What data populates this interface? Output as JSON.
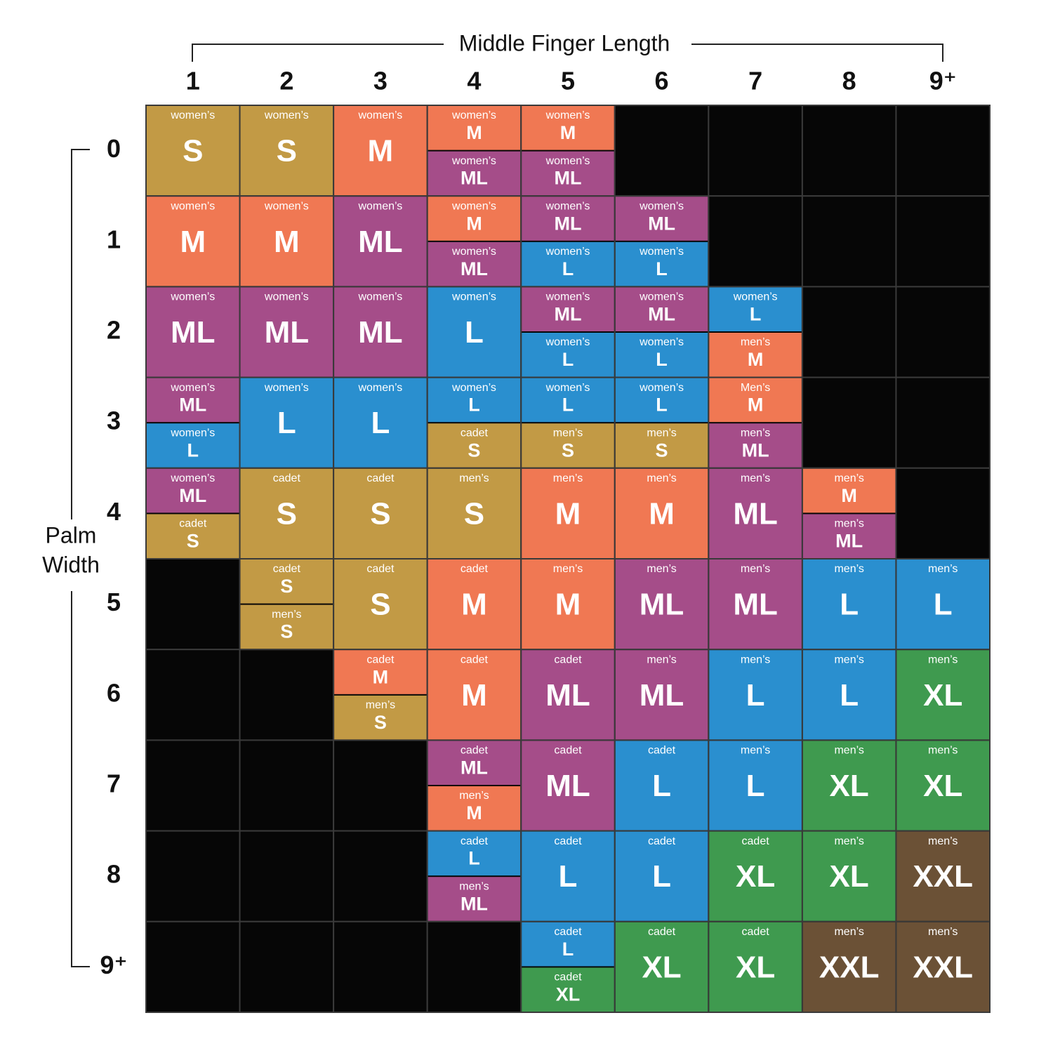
{
  "header": {
    "title": "Middle Finger Length",
    "side_title": [
      "Palm",
      "Width"
    ]
  },
  "palette": {
    "S": "#c29a45",
    "M": "#f07853",
    "ML": "#a54d89",
    "L": "#2a8fcf",
    "XL": "#3f9a4f",
    "XXL": "#6b5136",
    "empty": "#060606"
  },
  "table": {
    "columns": [
      "1",
      "2",
      "3",
      "4",
      "5",
      "6",
      "7",
      "8",
      "9⁺"
    ],
    "rows": [
      {
        "label": "0",
        "cells": [
          [
            [
              "women’s",
              "S"
            ]
          ],
          [
            [
              "women’s",
              "S"
            ]
          ],
          [
            [
              "women’s",
              "M"
            ]
          ],
          [
            [
              "women’s",
              "M"
            ],
            [
              "women’s",
              "ML"
            ]
          ],
          [
            [
              "women’s",
              "M"
            ],
            [
              "women’s",
              "ML"
            ]
          ],
          [],
          [],
          [],
          []
        ]
      },
      {
        "label": "1",
        "cells": [
          [
            [
              "women’s",
              "M"
            ]
          ],
          [
            [
              "women’s",
              "M"
            ]
          ],
          [
            [
              "women’s",
              "ML"
            ]
          ],
          [
            [
              "women’s",
              "M"
            ],
            [
              "women’s",
              "ML"
            ]
          ],
          [
            [
              "women’s",
              "ML"
            ],
            [
              "women’s",
              "L"
            ]
          ],
          [
            [
              "women’s",
              "ML"
            ],
            [
              "women’s",
              "L"
            ]
          ],
          [],
          [],
          []
        ]
      },
      {
        "label": "2",
        "cells": [
          [
            [
              "women’s",
              "ML"
            ]
          ],
          [
            [
              "women’s",
              "ML"
            ]
          ],
          [
            [
              "women’s",
              "ML"
            ]
          ],
          [
            [
              "women’s",
              "L"
            ]
          ],
          [
            [
              "women’s",
              "ML"
            ],
            [
              "women’s",
              "L"
            ]
          ],
          [
            [
              "women’s",
              "ML"
            ],
            [
              "women’s",
              "L"
            ]
          ],
          [
            [
              "women’s",
              "L"
            ],
            [
              "men’s",
              "M"
            ]
          ],
          [],
          []
        ]
      },
      {
        "label": "3",
        "cells": [
          [
            [
              "women’s",
              "ML"
            ],
            [
              "women’s",
              "L"
            ]
          ],
          [
            [
              "women’s",
              "L"
            ]
          ],
          [
            [
              "women’s",
              "L"
            ]
          ],
          [
            [
              "women’s",
              "L"
            ],
            [
              "cadet",
              "S"
            ]
          ],
          [
            [
              "women’s",
              "L"
            ],
            [
              "men’s",
              "S"
            ]
          ],
          [
            [
              "women’s",
              "L"
            ],
            [
              "men’s",
              "S"
            ]
          ],
          [
            [
              "Men’s",
              "M"
            ],
            [
              "men’s",
              "ML"
            ]
          ],
          [],
          []
        ]
      },
      {
        "label": "4",
        "cells": [
          [
            [
              "women’s",
              "ML"
            ],
            [
              "cadet",
              "S"
            ]
          ],
          [
            [
              "cadet",
              "S"
            ]
          ],
          [
            [
              "cadet",
              "S"
            ]
          ],
          [
            [
              "men’s",
              "S"
            ]
          ],
          [
            [
              "men’s",
              "M"
            ]
          ],
          [
            [
              "men’s",
              "M"
            ]
          ],
          [
            [
              "men’s",
              "ML"
            ]
          ],
          [
            [
              "men’s",
              "M"
            ],
            [
              "men’s",
              "ML"
            ]
          ],
          []
        ]
      },
      {
        "label": "5",
        "cells": [
          [],
          [
            [
              "cadet",
              "S"
            ],
            [
              "men’s",
              "S"
            ]
          ],
          [
            [
              "cadet",
              "S"
            ]
          ],
          [
            [
              "cadet",
              "M"
            ]
          ],
          [
            [
              "men’s",
              "M"
            ]
          ],
          [
            [
              "men’s",
              "ML"
            ]
          ],
          [
            [
              "men’s",
              "ML"
            ]
          ],
          [
            [
              "men’s",
              "L"
            ]
          ],
          [
            [
              "men’s",
              "L"
            ]
          ]
        ]
      },
      {
        "label": "6",
        "cells": [
          [],
          [],
          [
            [
              "cadet",
              "M"
            ],
            [
              "men’s",
              "S"
            ]
          ],
          [
            [
              "cadet",
              "M"
            ]
          ],
          [
            [
              "cadet",
              "ML"
            ]
          ],
          [
            [
              "men’s",
              "ML"
            ]
          ],
          [
            [
              "men’s",
              "L"
            ]
          ],
          [
            [
              "men’s",
              "L"
            ]
          ],
          [
            [
              "men’s",
              "XL"
            ]
          ]
        ]
      },
      {
        "label": "7",
        "cells": [
          [],
          [],
          [],
          [
            [
              "cadet",
              "ML"
            ],
            [
              "men’s",
              "M"
            ]
          ],
          [
            [
              "cadet",
              "ML"
            ]
          ],
          [
            [
              "cadet",
              "L"
            ]
          ],
          [
            [
              "men’s",
              "L"
            ]
          ],
          [
            [
              "men’s",
              "XL"
            ]
          ],
          [
            [
              "men’s",
              "XL"
            ]
          ]
        ]
      },
      {
        "label": "8",
        "cells": [
          [],
          [],
          [],
          [
            [
              "cadet",
              "L"
            ],
            [
              "men’s",
              "ML"
            ]
          ],
          [
            [
              "cadet",
              "L"
            ]
          ],
          [
            [
              "cadet",
              "L"
            ]
          ],
          [
            [
              "cadet",
              "XL"
            ]
          ],
          [
            [
              "men’s",
              "XL"
            ]
          ],
          [
            [
              "men’s",
              "XXL"
            ]
          ]
        ]
      },
      {
        "label": "9⁺",
        "cells": [
          [],
          [],
          [],
          [],
          [
            [
              "cadet",
              "L"
            ],
            [
              "cadet",
              "XL"
            ]
          ],
          [
            [
              "cadet",
              "XL"
            ]
          ],
          [
            [
              "cadet",
              "XL"
            ]
          ],
          [
            [
              "men’s",
              "XXL"
            ]
          ],
          [
            [
              "men’s",
              "XXL"
            ]
          ]
        ]
      }
    ]
  }
}
